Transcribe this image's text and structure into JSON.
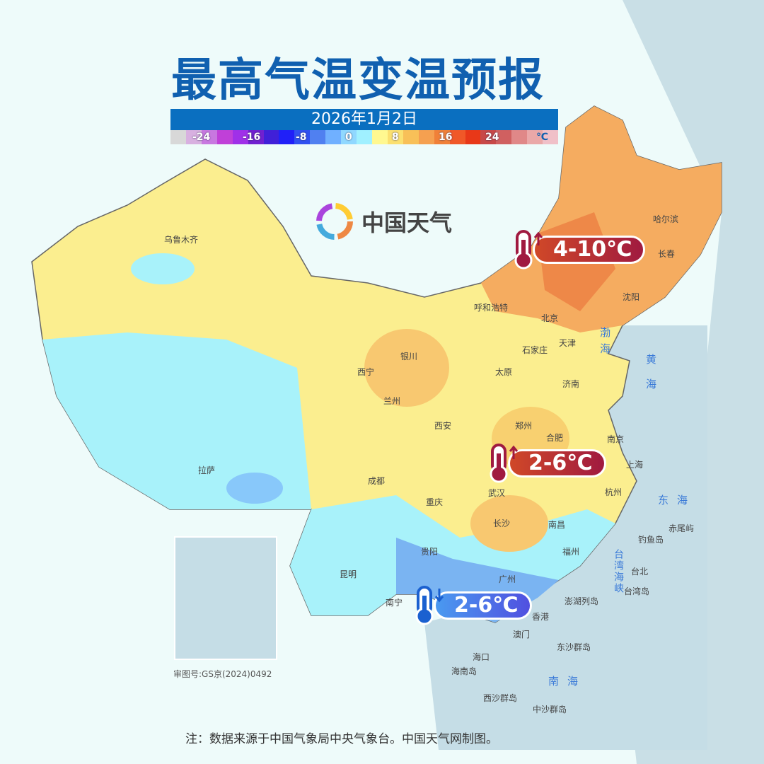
{
  "title": "最高气温变温预报",
  "date": "2026年1月2日",
  "legend": {
    "unit": "℃",
    "ticks": [
      "-24",
      "-16",
      "-8",
      "0",
      "8",
      "16",
      "24"
    ],
    "colors": [
      "#d8d8d8",
      "#d8b0e0",
      "#c878e0",
      "#c040d8",
      "#a030e8",
      "#7020d0",
      "#4020d8",
      "#2020f8",
      "#3050f0",
      "#5080f0",
      "#70b0ff",
      "#90d8ff",
      "#a0f0ff",
      "#fff890",
      "#fbe070",
      "#f8c058",
      "#f5a050",
      "#f08038",
      "#f05828",
      "#e83818",
      "#c84848",
      "#d06060",
      "#e08888",
      "#eaa8a8",
      "#f0c0c8"
    ]
  },
  "logo": {
    "text": "中国天气"
  },
  "badges": [
    {
      "text": "4-10℃",
      "direction": "rise",
      "color": "#a01a40"
    },
    {
      "text": "2-6℃",
      "direction": "rise",
      "color": "#a01a40"
    },
    {
      "text": "2-6℃",
      "direction": "fall",
      "color": "#2a6ad8"
    }
  ],
  "cities": [
    "乌鲁木齐",
    "哈尔滨",
    "长春",
    "沈阳",
    "呼和浩特",
    "北京",
    "天津",
    "石家庄",
    "太原",
    "济南",
    "银川",
    "西宁",
    "兰州",
    "西安",
    "郑州",
    "合肥",
    "南京",
    "上海",
    "杭州",
    "拉萨",
    "成都",
    "重庆",
    "武汉",
    "长沙",
    "南昌",
    "福州",
    "贵阳",
    "昆明",
    "南宁",
    "广州",
    "香港",
    "澳门",
    "海口",
    "台北"
  ],
  "islands": [
    "钓鱼岛",
    "赤尾屿",
    "台湾岛",
    "澎湖列岛",
    "东沙群岛",
    "海南岛",
    "西沙群岛",
    "中沙群岛"
  ],
  "seas": [
    "渤海",
    "黄海",
    "东海",
    "南海",
    "台湾海峡"
  ],
  "map_number": "审图号:GS京(2024)0492",
  "note": "注：数据来源于中国气象局中央气象台。中国天气网制图。"
}
